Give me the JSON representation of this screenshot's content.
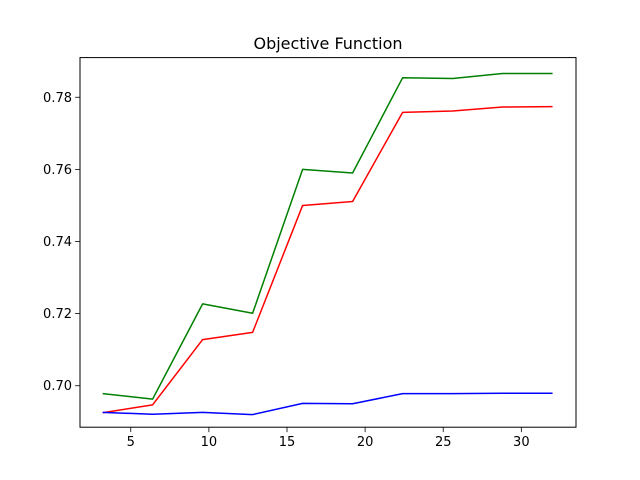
{
  "chart_data": {
    "type": "line",
    "title": "Objective Function",
    "xlabel": "",
    "ylabel": "",
    "xlim": [
      1.75,
      33.5
    ],
    "ylim": [
      0.6885,
      0.791
    ],
    "xticks": [
      5,
      10,
      15,
      20,
      25,
      30
    ],
    "yticks": [
      0.7,
      0.72,
      0.74,
      0.76,
      0.78
    ],
    "xtick_labels": [
      "5",
      "10",
      "15",
      "20",
      "25",
      "30"
    ],
    "ytick_labels": [
      "0.70",
      "0.72",
      "0.74",
      "0.76",
      "0.78"
    ],
    "grid": false,
    "x": [
      3.2,
      6.4,
      9.6,
      12.8,
      16.0,
      19.2,
      22.4,
      25.6,
      28.8,
      32.0
    ],
    "series": [
      {
        "color": "#008000",
        "values": [
          0.6978,
          0.6963,
          0.7227,
          0.7201,
          0.76,
          0.759,
          0.7854,
          0.7852,
          0.7866,
          0.7866
        ]
      },
      {
        "color": "#ff0000",
        "values": [
          0.6925,
          0.6947,
          0.7128,
          0.7148,
          0.75,
          0.7511,
          0.7758,
          0.7762,
          0.7773,
          0.7774
        ]
      },
      {
        "color": "#0000ff",
        "values": [
          0.6926,
          0.6921,
          0.6926,
          0.692,
          0.6951,
          0.695,
          0.6978,
          0.6978,
          0.6979,
          0.6979
        ]
      }
    ]
  }
}
